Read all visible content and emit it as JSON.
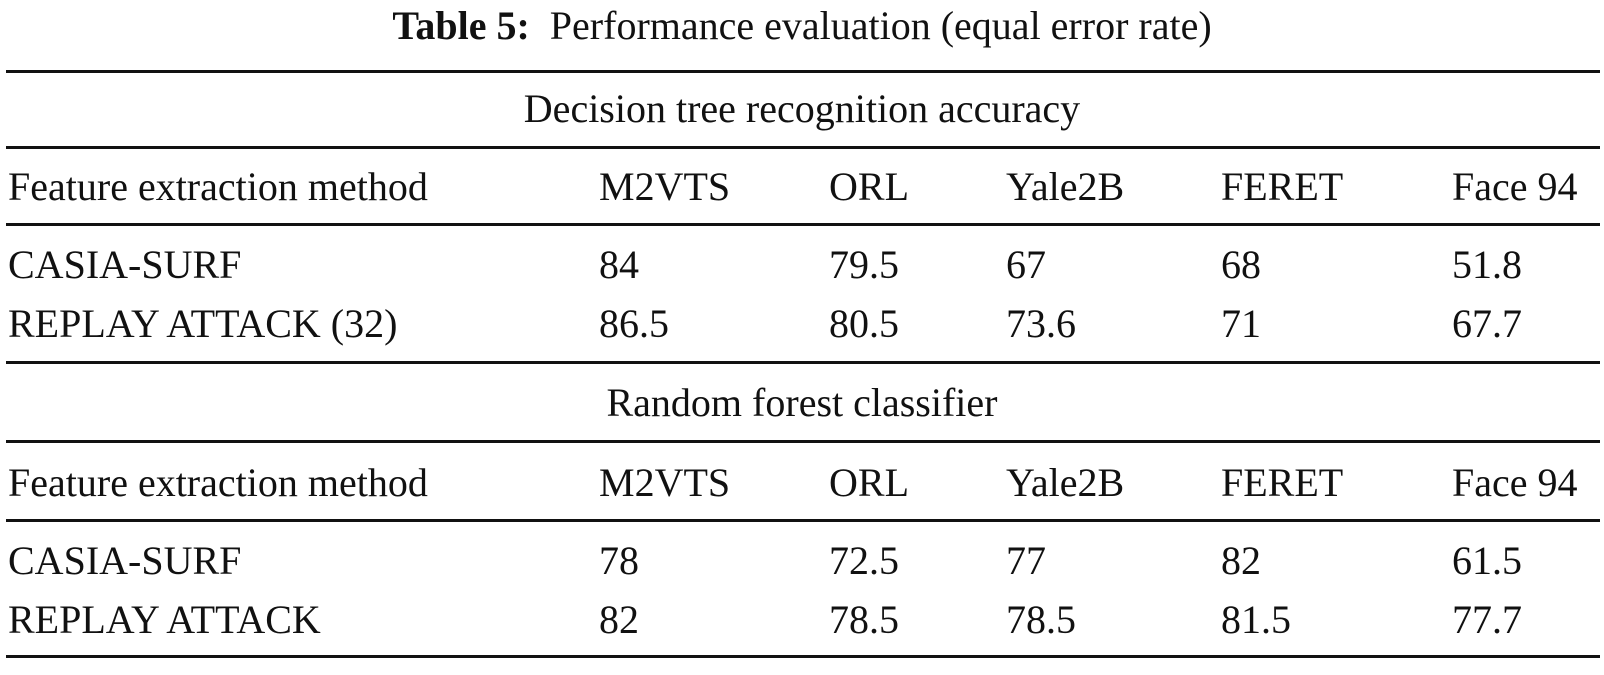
{
  "table": {
    "caption_label": "Table 5:",
    "caption_text": "Performance evaluation (equal error rate)",
    "sections": [
      {
        "title": "Decision tree recognition accuracy",
        "header": [
          "Feature extraction method",
          "M2VTS",
          "ORL",
          "Yale2B",
          "FERET",
          "Face 94"
        ],
        "rows": [
          [
            "CASIA-SURF",
            "84",
            "79.5",
            "67",
            "68",
            "51.8"
          ],
          [
            "REPLAY ATTACK (32)",
            "86.5",
            "80.5",
            "73.6",
            "71",
            "67.7"
          ]
        ]
      },
      {
        "title": "Random forest classifier",
        "header": [
          "Feature extraction method",
          "M2VTS",
          "ORL",
          "Yale2B",
          "FERET",
          "Face 94"
        ],
        "rows": [
          [
            "CASIA-SURF",
            "78",
            "72.5",
            "77",
            "82",
            "61.5"
          ],
          [
            "REPLAY ATTACK",
            "82",
            "78.5",
            "78.5",
            "81.5",
            "77.7"
          ]
        ]
      }
    ]
  }
}
